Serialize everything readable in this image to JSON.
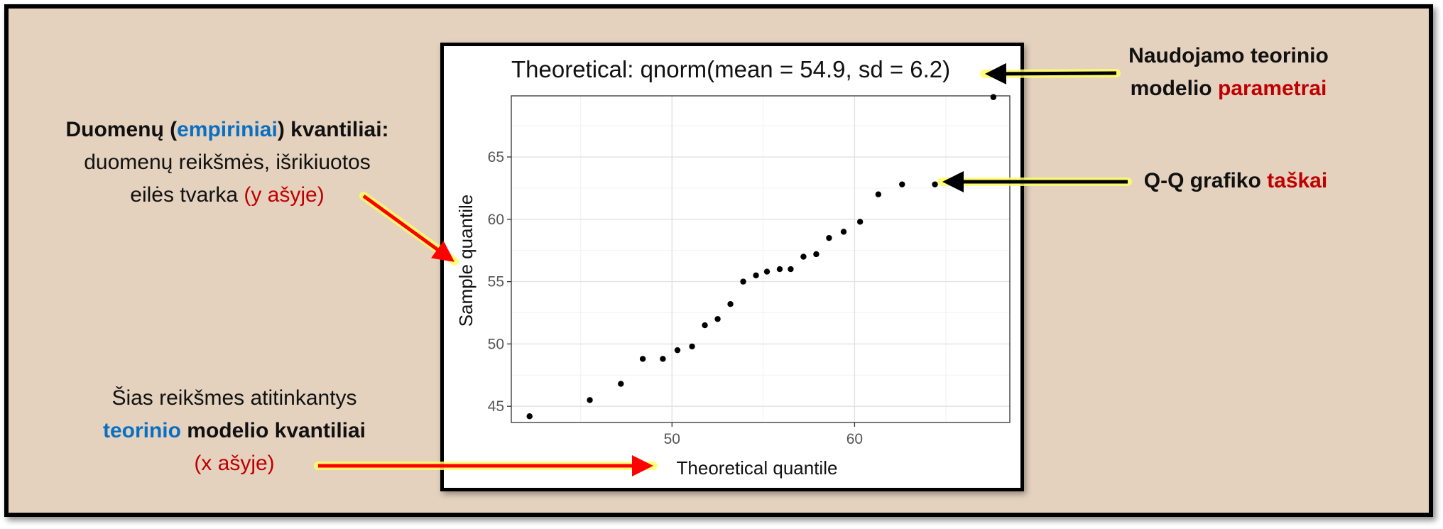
{
  "annotations": {
    "sample_quantiles": {
      "line1_part1": "Duomenų (",
      "line1_highlight": "empiriniai",
      "line1_part2": ") kvantiliai:",
      "line2": "duomenų reikšmės, išrikiuotos",
      "line3_part1": "eilės tvarka ",
      "line3_highlight": "(y ašyje)"
    },
    "theoretical_quantiles": {
      "line1": "Šias reikšmes atitinkantys",
      "line2_highlight": "teorinio",
      "line2_rest": " modelio kvantiliai",
      "line3_highlight": "(x ašyje)"
    },
    "parameters": {
      "line1": "Naudojamo teorinio",
      "line2_part1": "modelio ",
      "line2_highlight": "parametrai"
    },
    "points": {
      "part1": "Q-Q grafiko ",
      "highlight": "taškai"
    }
  },
  "colors": {
    "panel_background": "#e4d2bf",
    "highlight_blue": "#0a6fc2",
    "highlight_red": "#c00000",
    "arrow_red": "#ff0000",
    "arrow_glow": "#ffff66"
  },
  "chart_data": {
    "type": "scatter",
    "title": "Theoretical: qnorm(mean = 54.9, sd = 6.2)",
    "xlabel": "Theoretical quantile",
    "ylabel": "Sample quantile",
    "xlim": [
      41.2,
      68.5
    ],
    "ylim": [
      43.7,
      69.9
    ],
    "x_ticks": [
      50,
      60
    ],
    "y_ticks": [
      45,
      50,
      55,
      60,
      65
    ],
    "grid": true,
    "points": [
      {
        "x": 42.2,
        "y": 44.2
      },
      {
        "x": 45.5,
        "y": 45.5
      },
      {
        "x": 47.2,
        "y": 46.8
      },
      {
        "x": 48.4,
        "y": 48.8
      },
      {
        "x": 49.5,
        "y": 48.8
      },
      {
        "x": 50.3,
        "y": 49.5
      },
      {
        "x": 51.1,
        "y": 49.8
      },
      {
        "x": 51.8,
        "y": 51.5
      },
      {
        "x": 52.5,
        "y": 52.0
      },
      {
        "x": 53.2,
        "y": 53.2
      },
      {
        "x": 53.9,
        "y": 55.0
      },
      {
        "x": 54.6,
        "y": 55.5
      },
      {
        "x": 55.2,
        "y": 55.8
      },
      {
        "x": 55.9,
        "y": 56.0
      },
      {
        "x": 56.5,
        "y": 56.0
      },
      {
        "x": 57.2,
        "y": 57.0
      },
      {
        "x": 57.9,
        "y": 57.2
      },
      {
        "x": 58.6,
        "y": 58.5
      },
      {
        "x": 59.4,
        "y": 59.0
      },
      {
        "x": 60.3,
        "y": 59.8
      },
      {
        "x": 61.3,
        "y": 62.0
      },
      {
        "x": 62.6,
        "y": 62.8
      },
      {
        "x": 64.4,
        "y": 62.8
      },
      {
        "x": 67.6,
        "y": 69.8
      }
    ]
  }
}
